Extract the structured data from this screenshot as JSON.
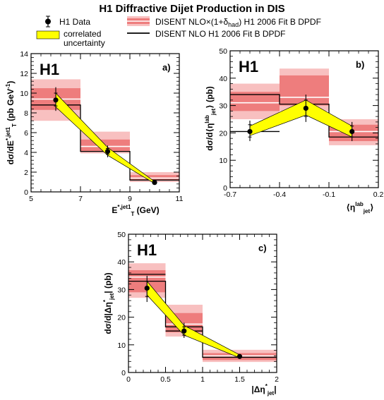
{
  "figure": {
    "title": "H1 Diffractive Dijet Production in DIS",
    "legend": {
      "data": "H1 Data",
      "corr_line1": "correlated",
      "corr_line2": "uncertainty",
      "nlo_band_prefix": "DISENT NLO×(1+δ",
      "nlo_band_sub": "had",
      "nlo_band_suffix": ") H1 2006 Fit B DPDF",
      "nlo_line": "DISENT NLO H1 2006 Fit B DPDF"
    },
    "colors": {
      "band_outer": "#f8c0c0",
      "band_inner": "#ee7d7d",
      "correlated": "#ffff00",
      "data": "#000000"
    }
  },
  "chart_data": [
    {
      "type": "step",
      "panel_label": "a)",
      "experiment_label": "H1",
      "ylabel_prefix": "dσ/dE",
      "ylabel_sup": "*,jet1",
      "ylabel_sub": "T",
      "ylabel_suffix": " (pb GeV",
      "ylabel_unit_sup": "-1",
      "ylabel_close": ")",
      "xlabel_prefix": "E",
      "xlabel_sup": "*,jet1",
      "xlabel_sub": "T",
      "xlabel_suffix": " (GeV)",
      "xlim": [
        5,
        11
      ],
      "ylim": [
        0,
        14
      ],
      "xticks": [
        "5",
        "7",
        "9",
        "11"
      ],
      "yticks": [
        "0",
        "2",
        "4",
        "6",
        "8",
        "10",
        "12",
        "14"
      ],
      "bins": [
        {
          "lo": 5,
          "hi": 7,
          "nlo": 8.8,
          "had": 9.4,
          "inner": [
            8.3,
            10.5
          ],
          "outer": [
            7.2,
            11.4
          ]
        },
        {
          "lo": 7,
          "hi": 9,
          "nlo": 4.1,
          "had": 4.6,
          "inner": [
            4.1,
            5.3
          ],
          "outer": [
            3.9,
            6.1
          ]
        },
        {
          "lo": 9,
          "hi": 11,
          "nlo": 1.2,
          "had": 1.4,
          "inner": [
            1.2,
            1.7
          ],
          "outer": [
            1.0,
            2.0
          ]
        }
      ],
      "data": [
        {
          "x": 6.0,
          "y": 9.3,
          "stat": [
            8.7,
            10.0
          ],
          "tot": [
            8.2,
            10.6
          ]
        },
        {
          "x": 8.1,
          "y": 4.1,
          "stat": [
            3.8,
            4.4
          ],
          "tot": [
            3.5,
            4.7
          ]
        },
        {
          "x": 10.0,
          "y": 0.95,
          "stat": [
            0.9,
            1.05
          ],
          "tot": [
            0.85,
            1.1
          ]
        }
      ],
      "correlated": {
        "x": [
          6.0,
          8.1,
          10.0
        ],
        "lo": [
          8.6,
          3.7,
          0.85
        ],
        "hi": [
          10.0,
          4.5,
          1.05
        ]
      }
    },
    {
      "type": "step",
      "panel_label": "b)",
      "experiment_label": "H1",
      "ylabel_prefix": "dσ/d⟨η",
      "ylabel_sup": "lab",
      "ylabel_sub": "jet",
      "ylabel_suffix": "⟩ (pb)",
      "xlabel_prefix": "⟨η",
      "xlabel_sup": "lab",
      "xlabel_sub": "jet",
      "xlabel_suffix": "⟩",
      "xlim": [
        -0.7,
        0.2
      ],
      "ylim": [
        0,
        50
      ],
      "xticks": [
        "-0.7",
        "-0.4",
        "-0.1",
        "0.2"
      ],
      "yticks": [
        "0",
        "10",
        "20",
        "30",
        "40",
        "50"
      ],
      "bins": [
        {
          "lo": -0.7,
          "hi": -0.4,
          "nlo": 34,
          "had": 31,
          "inner": [
            28,
            35
          ],
          "outer": [
            25,
            38
          ]
        },
        {
          "lo": -0.4,
          "hi": -0.1,
          "nlo": 30.5,
          "had": 33,
          "inner": [
            30,
            41
          ],
          "outer": [
            28,
            43.5
          ]
        },
        {
          "lo": -0.1,
          "hi": 0.2,
          "nlo": 18.5,
          "had": 20.5,
          "inner": [
            17,
            23
          ],
          "outer": [
            15.5,
            25
          ]
        }
      ],
      "extra_lines": [
        {
          "lo": -0.7,
          "hi": -0.4,
          "y": 20.5
        }
      ],
      "data": [
        {
          "x": -0.58,
          "y": 20.5,
          "stat": [
            18.5,
            23
          ],
          "tot": [
            17,
            24.5
          ]
        },
        {
          "x": -0.24,
          "y": 29,
          "stat": [
            26,
            32
          ],
          "tot": [
            24,
            34
          ]
        },
        {
          "x": 0.04,
          "y": 20.5,
          "stat": [
            18.5,
            22.5
          ],
          "tot": [
            17,
            24
          ]
        }
      ],
      "correlated": {
        "x": [
          -0.58,
          -0.24,
          0.04
        ],
        "lo": [
          19,
          26.5,
          18.5
        ],
        "hi": [
          22.5,
          32,
          22.5
        ]
      }
    },
    {
      "type": "step",
      "panel_label": "c)",
      "experiment_label": "H1",
      "ylabel_prefix": "dσ/d|Δη",
      "ylabel_sup": "*",
      "ylabel_sub": "jet",
      "ylabel_suffix": "| (pb)",
      "xlabel_prefix": "|Δη",
      "xlabel_sup": "*",
      "xlabel_sub": "jet",
      "xlabel_suffix": "|",
      "xlim": [
        0,
        2
      ],
      "ylim": [
        0,
        50
      ],
      "xticks": [
        "0",
        "0.5",
        "1",
        "1.5",
        "2"
      ],
      "yticks": [
        "0",
        "10",
        "20",
        "30",
        "40",
        "50"
      ],
      "bins": [
        {
          "lo": 0,
          "hi": 0.5,
          "nlo": 33,
          "had": 34.5,
          "inner": [
            29,
            37
          ],
          "outer": [
            27,
            39.5
          ]
        },
        {
          "lo": 0.5,
          "hi": 1,
          "nlo": 16.5,
          "had": 17.5,
          "inner": [
            14.5,
            21.5
          ],
          "outer": [
            13,
            24.5
          ]
        },
        {
          "lo": 1,
          "hi": 2,
          "nlo": 5.5,
          "had": 6,
          "inner": [
            4.5,
            7
          ],
          "outer": [
            3.8,
            8.2
          ]
        }
      ],
      "extra_lines": [
        {
          "lo": 0,
          "hi": 0.5,
          "y": 35.5
        },
        {
          "lo": 0.5,
          "hi": 1,
          "y": 15
        }
      ],
      "data": [
        {
          "x": 0.25,
          "y": 30.5,
          "stat": [
            27.5,
            33
          ],
          "tot": [
            25.5,
            35
          ]
        },
        {
          "x": 0.75,
          "y": 15,
          "stat": [
            13.5,
            16.5
          ],
          "tot": [
            12.5,
            18
          ]
        },
        {
          "x": 1.5,
          "y": 5.8,
          "stat": [
            5.5,
            6.2
          ],
          "tot": [
            5.2,
            6.6
          ]
        }
      ],
      "correlated": {
        "x": [
          0.25,
          0.75,
          1.5
        ],
        "lo": [
          28,
          13.5,
          5.3
        ],
        "hi": [
          33,
          17,
          6.4
        ]
      }
    }
  ]
}
